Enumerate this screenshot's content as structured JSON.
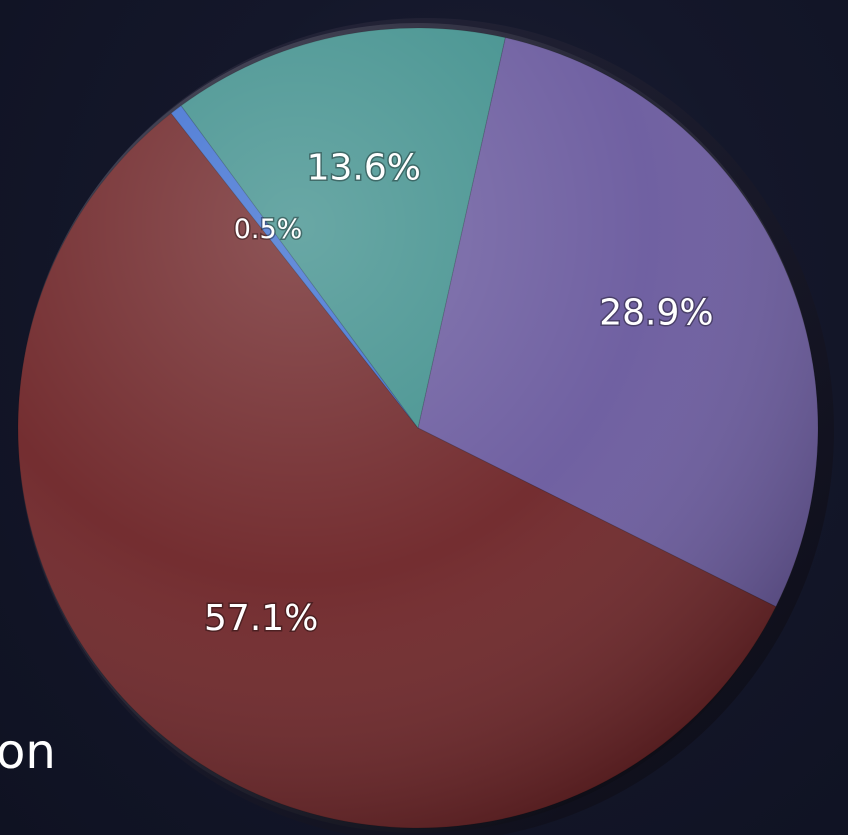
{
  "side_text": "on",
  "chart_data": {
    "type": "pie",
    "slices": [
      {
        "value": 28.9,
        "label": "28.9%",
        "color": "#6a5a9e"
      },
      {
        "value": 57.1,
        "label": "57.1%",
        "color": "#6e2528"
      },
      {
        "value": 0.5,
        "label": "0.5%",
        "color": "#3d6fd1"
      },
      {
        "value": 13.6,
        "label": "13.6%",
        "color": "#3f8f8c"
      }
    ],
    "start_slice": 0,
    "direction": "clockwise",
    "legend": "none"
  }
}
